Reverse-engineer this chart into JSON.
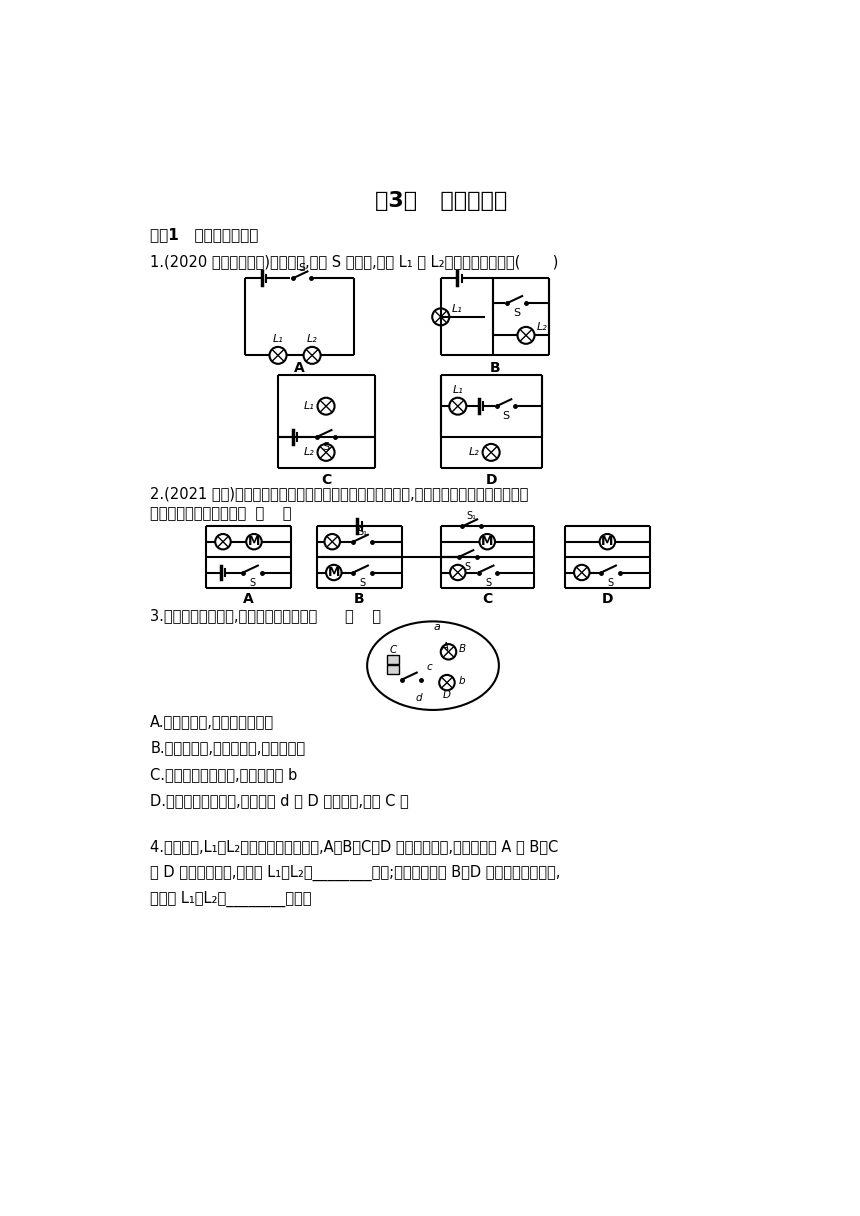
{
  "title": "第3节   串联和并联",
  "section": "题组1   识别串联和并联",
  "q1": "1.(2020 呼伦贝尔改编)如图所示,开关 S 闭合时,灯泡 L₁ 与 L₂组成串联电路的是(       )",
  "q2_1": "2.(2021 长沙)玩具警车的简化电路主要由电动机和灯泡组成,图中电路安全且电动机和灯泡",
  "q2_2": "都能独立工作的设计图是  （    ）",
  "q3": "3.如图所示的电路中,下列说法不正确的是      （    ）",
  "q3A": "A.开关闭合后,电路将发生短路",
  "q3B": "B.开关闭合后,两灯泡并联,且都能发光",
  "q3C": "C.要想使两灯泡串联,可去掉导线 b",
  "q3D": "D.要想使两灯泡并联,可将导线 d 的 D 接点拆下,接到 C 点",
  "q4_1": "4.如图所示,L₁、L₂是两个相同的小灯泡,A、B、C、D 是四个接线柱,若用导线将 A 与 B、C",
  "q4_2": "与 D 分别连接起来,则灯泡 L₁、L₂是________联的;若用导线只将 B、D 两接线柱连接起来,",
  "q4_3": "则灯泡 L₁、L₂是________联的。",
  "bg": "#ffffff"
}
